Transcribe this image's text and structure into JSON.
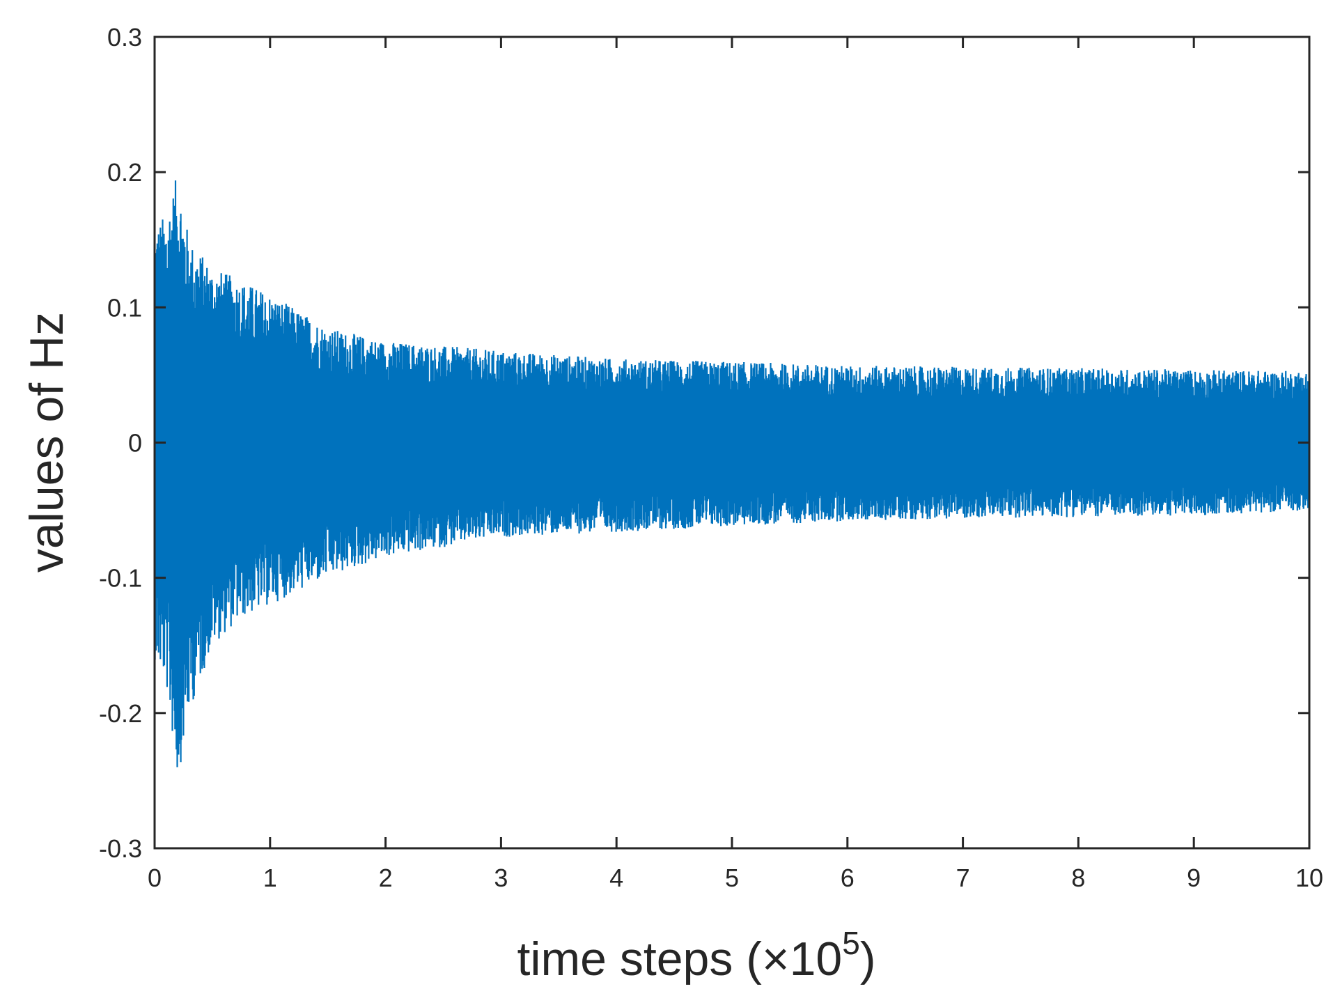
{
  "chart_data": {
    "type": "line",
    "xlabel": "time steps (×10",
    "xlabel_exponent": "5",
    "xlabel_close": ")",
    "ylabel": "values of Hz",
    "xlim": [
      0,
      10
    ],
    "ylim": [
      -0.3,
      0.3
    ],
    "x_ticks": [
      "0",
      "1",
      "2",
      "3",
      "4",
      "5",
      "6",
      "7",
      "8",
      "9",
      "10"
    ],
    "y_ticks": [
      "-0.3",
      "-0.2",
      "-0.1",
      "0",
      "0.1",
      "0.2",
      "0.3"
    ],
    "grid": false,
    "series": [
      {
        "color": "#0072BD",
        "envelope": {
          "x": [
            0,
            0.1,
            0.2,
            0.3,
            0.5,
            0.75,
            1.0,
            1.5,
            2.0,
            3.0,
            4.0,
            5.0,
            6.0,
            7.0,
            8.0,
            9.0,
            10.0
          ],
          "upper": [
            0.16,
            0.17,
            0.2,
            0.15,
            0.13,
            0.12,
            0.11,
            0.085,
            0.075,
            0.068,
            0.062,
            0.06,
            0.057,
            0.056,
            0.055,
            0.054,
            0.053
          ],
          "lower": [
            -0.16,
            -0.18,
            -0.25,
            -0.2,
            -0.15,
            -0.13,
            -0.12,
            -0.1,
            -0.085,
            -0.07,
            -0.066,
            -0.062,
            -0.058,
            -0.056,
            -0.055,
            -0.054,
            -0.05
          ]
        }
      }
    ]
  }
}
